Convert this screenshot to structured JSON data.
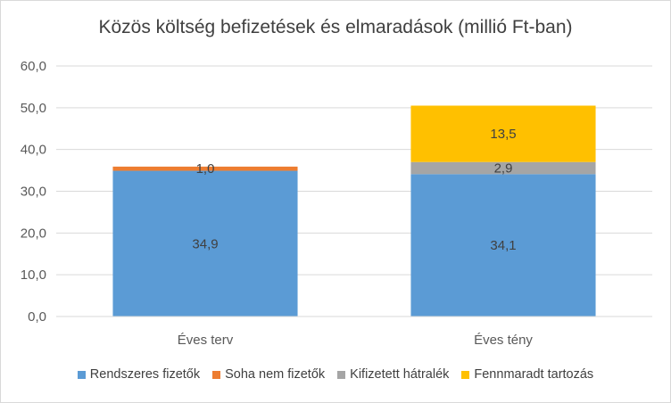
{
  "chart_data": {
    "type": "bar",
    "stacked": true,
    "title": "Közös költség befizetések és elmaradások (millió Ft-ban)",
    "categories": [
      "Éves terv",
      "Éves tény"
    ],
    "ylim": [
      0,
      60
    ],
    "y_ticks": [
      "0,0",
      "10,0",
      "20,0",
      "30,0",
      "40,0",
      "50,0",
      "60,0"
    ],
    "grid": true,
    "legend_position": "bottom",
    "series": [
      {
        "name": "Rendszeres fizetők",
        "color": "#5b9bd5",
        "values": [
          34.9,
          34.1
        ],
        "labels": [
          "34,9",
          "34,1"
        ]
      },
      {
        "name": "Soha nem fizetők",
        "color": "#ed7d31",
        "values": [
          1.0,
          0
        ],
        "labels": [
          "1,0",
          ""
        ]
      },
      {
        "name": "Kifizetett hátralék",
        "color": "#a5a5a5",
        "values": [
          0,
          2.9
        ],
        "labels": [
          "",
          "2,9"
        ]
      },
      {
        "name": "Fennmaradt tartozás",
        "color": "#ffc000",
        "values": [
          0,
          13.5
        ],
        "labels": [
          "",
          "13,5"
        ]
      }
    ]
  }
}
